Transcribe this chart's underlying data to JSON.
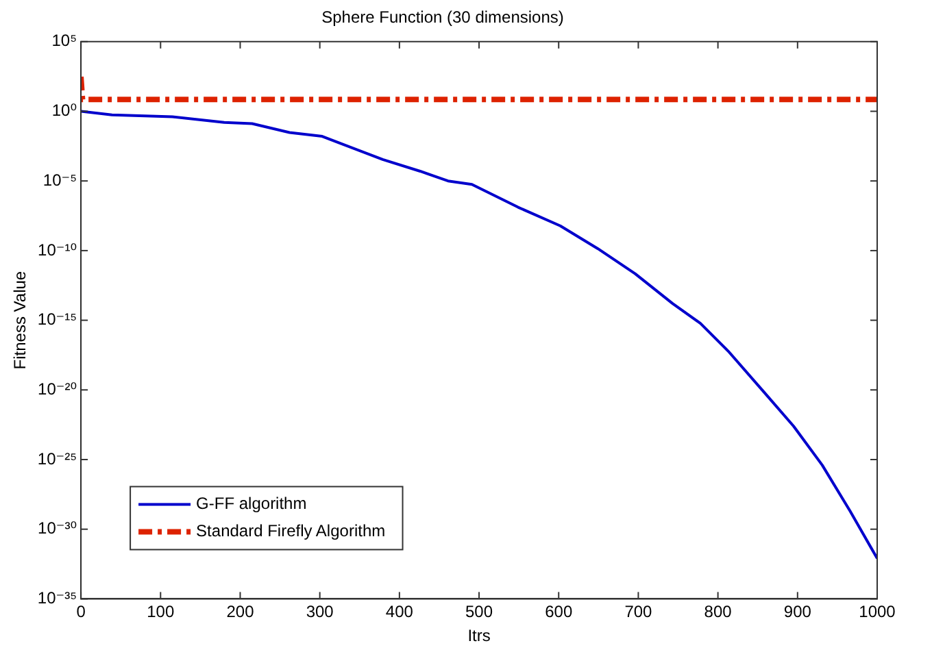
{
  "chart_data": {
    "type": "line",
    "title": "Sphere Function (30 dimensions)",
    "xlabel": "Itrs",
    "ylabel": "Fitness Value",
    "log": "y",
    "xlim": [
      0,
      1000
    ],
    "xticks": [
      0,
      100,
      200,
      300,
      400,
      500,
      600,
      700,
      800,
      900,
      1000
    ],
    "ylim": [
      1e-35,
      100000.0
    ],
    "yticks": [
      {
        "value": 1e-35,
        "label": "10⁻³⁵"
      },
      {
        "value": 1e-30,
        "label": "10⁻³⁰"
      },
      {
        "value": 1e-25,
        "label": "10⁻²⁵"
      },
      {
        "value": 1e-20,
        "label": "10⁻²⁰"
      },
      {
        "value": 1e-15,
        "label": "10⁻¹⁵"
      },
      {
        "value": 1e-10,
        "label": "10⁻¹⁰"
      },
      {
        "value": 1e-05,
        "label": "10⁻⁵"
      },
      {
        "value": 1,
        "label": "10⁰"
      },
      {
        "value": 100000.0,
        "label": "10⁵"
      }
    ],
    "grid": false,
    "legend": "bottom left",
    "marker": "none",
    "series": [
      {
        "name": "G-FF algorithm",
        "color": "#0000cc",
        "line_style": "solid",
        "x": [
          0,
          39,
          115,
          180,
          215,
          262,
          303,
          326,
          379,
          426,
          461,
          491,
          549,
          602,
          649,
          696,
          743,
          778,
          813,
          860,
          895,
          931,
          966,
          1000
        ],
        "values": [
          1,
          0.55,
          0.4,
          0.16,
          0.13,
          0.03,
          0.016,
          0.005,
          0.00035,
          5e-05,
          1e-05,
          5.6e-06,
          1.3e-07,
          6e-09,
          1.4e-10,
          2.2e-12,
          1.6e-14,
          6e-16,
          6e-18,
          5e-21,
          2.5e-23,
          4e-26,
          2e-29,
          8e-33
        ]
      },
      {
        "name": "Standard Firefly Algorithm",
        "color": "#dd2200",
        "line_style": "dashed",
        "x": [
          0,
          2,
          1000
        ],
        "values": [
          300,
          7,
          7
        ]
      }
    ]
  }
}
